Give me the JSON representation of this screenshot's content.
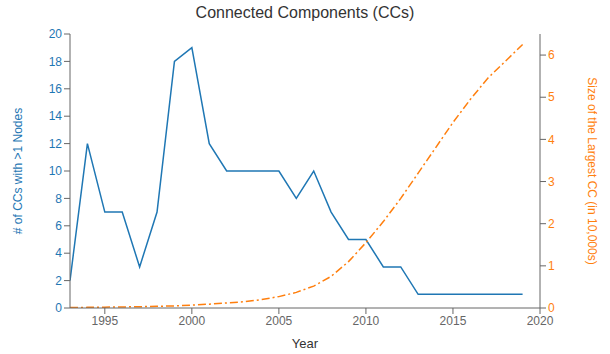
{
  "chart_data": {
    "type": "line",
    "title": "Connected Components (CCs)",
    "xlabel": "Year",
    "ylabel": "# of CCs with >1 Nodes",
    "y2label": "Size of the Largest CC (in 10,000s)",
    "series": [
      {
        "color": "#1f77b4",
        "line_style": "solid",
        "x": [
          1993,
          1994,
          1995,
          1995,
          1996,
          1997,
          1998,
          1999,
          2000,
          2001,
          2002,
          2003,
          2004,
          2005,
          2006,
          2007,
          2008,
          2009,
          2010,
          2011,
          2012,
          2013,
          2014,
          2015,
          2016,
          2017,
          2018,
          2019
        ],
        "values": [
          2,
          12,
          7,
          7,
          7,
          3,
          7,
          18,
          19,
          12,
          10,
          10,
          10,
          10,
          8,
          10,
          7,
          5,
          5,
          3,
          3,
          1,
          1,
          1,
          1,
          1,
          1,
          1
        ]
      },
      {
        "color": "#ff7f0e",
        "line_style": "dashdot",
        "axis": "y2",
        "x": [
          1993,
          1994,
          1995,
          1996,
          1997,
          1998,
          1999,
          2000,
          2001,
          2002,
          2003,
          2004,
          2005,
          2006,
          2007,
          2008,
          2009,
          2010,
          2011,
          2012,
          2013,
          2014,
          2015,
          2016,
          2017,
          2018,
          2019
        ],
        "values": [
          0.01,
          0.015,
          0.02,
          0.025,
          0.03,
          0.04,
          0.05,
          0.07,
          0.09,
          0.12,
          0.15,
          0.2,
          0.27,
          0.37,
          0.52,
          0.75,
          1.1,
          1.55,
          2.05,
          2.6,
          3.2,
          3.8,
          4.4,
          4.95,
          5.45,
          5.85,
          6.25
        ]
      }
    ],
    "xlim": [
      1993,
      2020
    ],
    "xticks": [
      1995,
      2000,
      2005,
      2010,
      2015,
      2020
    ],
    "ylim": [
      0,
      20
    ],
    "yticks": [
      0,
      2,
      4,
      6,
      8,
      10,
      12,
      14,
      16,
      18,
      20
    ],
    "y2lim": [
      0,
      6.5
    ],
    "y2ticks": [
      0,
      1,
      2,
      3,
      4,
      5,
      6
    ],
    "grid": false
  }
}
